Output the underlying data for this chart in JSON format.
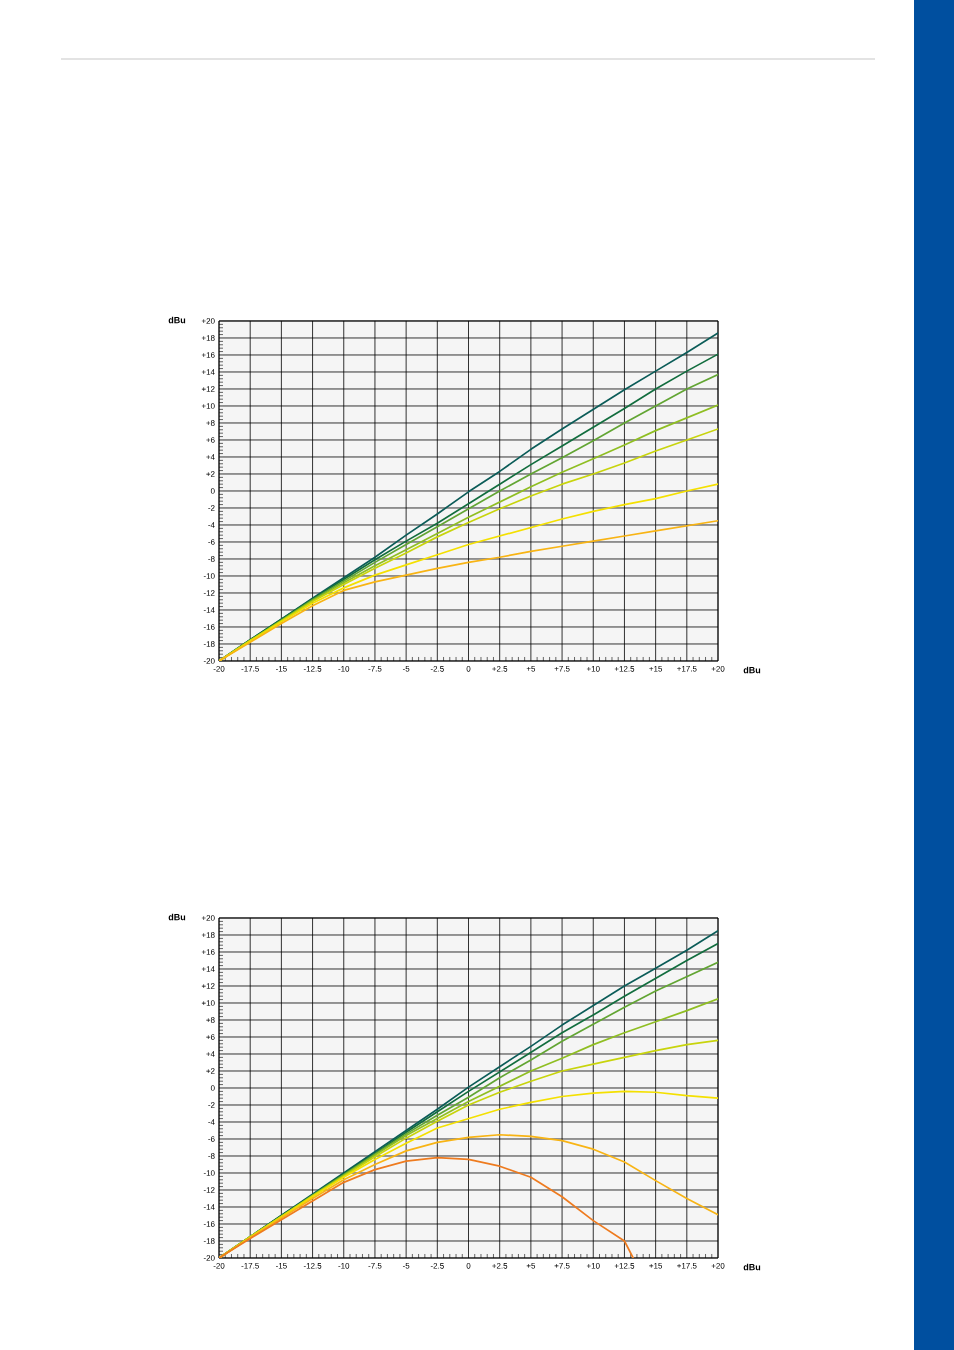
{
  "chart_data": [
    {
      "type": "line",
      "xlabel": "dBu",
      "ylabel": "dBu",
      "grid": true,
      "xlim": [
        -20,
        20
      ],
      "ylim": [
        -20,
        20
      ],
      "xticks": [
        -20,
        -17.5,
        -15,
        -12.5,
        -10,
        -7.5,
        -5,
        -2.5,
        0,
        {
          "value": 2.5,
          "label": "+2.5"
        },
        {
          "value": 5,
          "label": "+5"
        },
        {
          "value": 7.5,
          "label": "+7.5"
        },
        {
          "value": 10,
          "label": "+10"
        },
        {
          "value": 12.5,
          "label": "+12.5"
        },
        {
          "value": 15,
          "label": "+15"
        },
        {
          "value": 17.5,
          "label": "+17.5"
        },
        {
          "value": 20,
          "label": "+20"
        }
      ],
      "yticks": [
        {
          "value": 20,
          "label": "+20"
        },
        {
          "value": 18,
          "label": "+18"
        },
        {
          "value": 16,
          "label": "+16"
        },
        {
          "value": 14,
          "label": "+14"
        },
        {
          "value": 12,
          "label": "+12"
        },
        {
          "value": 10,
          "label": "+10"
        },
        {
          "value": 8,
          "label": "+8"
        },
        {
          "value": 6,
          "label": "+6"
        },
        {
          "value": 4,
          "label": "+4"
        },
        {
          "value": 2,
          "label": "+2"
        },
        0,
        -2,
        -4,
        -6,
        -8,
        -10,
        -12,
        -14,
        -16,
        -18,
        -20
      ],
      "x": [
        -20,
        -17.5,
        -15,
        -12.5,
        -10,
        -7.5,
        -5,
        -2.5,
        0,
        2.5,
        5,
        7.5,
        10,
        12.5,
        15,
        17.5,
        20
      ],
      "series": [
        {
          "color": "#0b5c58",
          "values": [
            -20,
            -17.5,
            -15.1,
            -12.6,
            -10.2,
            -7.8,
            -5.2,
            -2.7,
            -0.1,
            2.3,
            4.9,
            7.3,
            9.6,
            11.9,
            14.1,
            16.3,
            18.6
          ]
        },
        {
          "color": "#126d3e",
          "values": [
            -20,
            -17.5,
            -15.1,
            -12.7,
            -10.4,
            -8.1,
            -5.9,
            -3.8,
            -1.5,
            0.8,
            3.1,
            5.3,
            7.5,
            9.7,
            12.0,
            14.1,
            16.1
          ]
        },
        {
          "color": "#62a533",
          "values": [
            -20,
            -17.6,
            -15.2,
            -12.8,
            -10.6,
            -8.4,
            -6.3,
            -4.2,
            -2.1,
            0.0,
            2.0,
            3.9,
            5.9,
            8.0,
            10.0,
            12.0,
            13.7
          ]
        },
        {
          "color": "#8fbe22",
          "values": [
            -20,
            -17.6,
            -15.3,
            -12.9,
            -10.8,
            -8.8,
            -6.9,
            -5.0,
            -3.1,
            -1.3,
            0.5,
            2.2,
            3.8,
            5.4,
            7.1,
            8.6,
            10.1
          ]
        },
        {
          "color": "#c8d40c",
          "values": [
            -20,
            -17.6,
            -15.3,
            -13.0,
            -11.0,
            -9.1,
            -7.3,
            -5.4,
            -3.7,
            -2.1,
            -0.6,
            0.8,
            2.0,
            3.3,
            4.7,
            6.0,
            7.3
          ]
        },
        {
          "color": "#f4e000",
          "values": [
            -20,
            -17.7,
            -15.4,
            -13.2,
            -11.4,
            -9.9,
            -8.7,
            -7.5,
            -6.3,
            -5.3,
            -4.3,
            -3.3,
            -2.4,
            -1.6,
            -0.9,
            0.0,
            0.8
          ]
        },
        {
          "color": "#f8b414",
          "values": [
            -20,
            -17.8,
            -15.6,
            -13.5,
            -11.7,
            -10.7,
            -9.9,
            -9.1,
            -8.4,
            -7.8,
            -7.1,
            -6.5,
            -5.9,
            -5.3,
            -4.7,
            -4.1,
            -3.5
          ]
        }
      ]
    },
    {
      "type": "line",
      "xlabel": "dBu",
      "ylabel": "dBu",
      "grid": true,
      "xlim": [
        -20,
        20
      ],
      "ylim": [
        -20,
        20
      ],
      "xticks": [
        -20,
        -17.5,
        -15,
        -12.5,
        -10,
        -7.5,
        -5,
        -2.5,
        0,
        {
          "value": 2.5,
          "label": "+2.5"
        },
        {
          "value": 5,
          "label": "+5"
        },
        {
          "value": 7.5,
          "label": "+7.5"
        },
        {
          "value": 10,
          "label": "+10"
        },
        {
          "value": 12.5,
          "label": "+12.5"
        },
        {
          "value": 15,
          "label": "+15"
        },
        {
          "value": 17.5,
          "label": "+17.5"
        },
        {
          "value": 20,
          "label": "+20"
        }
      ],
      "yticks": [
        {
          "value": 20,
          "label": "+20"
        },
        {
          "value": 18,
          "label": "+18"
        },
        {
          "value": 16,
          "label": "+16"
        },
        {
          "value": 14,
          "label": "+14"
        },
        {
          "value": 12,
          "label": "+12"
        },
        {
          "value": 10,
          "label": "+10"
        },
        {
          "value": 8,
          "label": "+8"
        },
        {
          "value": 6,
          "label": "+6"
        },
        {
          "value": 4,
          "label": "+4"
        },
        {
          "value": 2,
          "label": "+2"
        },
        0,
        -2,
        -4,
        -6,
        -8,
        -10,
        -12,
        -14,
        -16,
        -18,
        -20
      ],
      "x": [
        -20,
        -17.5,
        -15,
        -12.5,
        -10,
        -7.5,
        -5,
        -2.5,
        0,
        2.5,
        5,
        7.5,
        10,
        12.5,
        15,
        17.5,
        20
      ],
      "series": [
        {
          "color": "#0b5c58",
          "values": [
            -20,
            -17.5,
            -15,
            -12.5,
            -10,
            -7.5,
            -5,
            -2.5,
            0.1,
            2.5,
            4.9,
            7.4,
            9.7,
            12.0,
            14.1,
            16.2,
            18.5
          ]
        },
        {
          "color": "#126d3e",
          "values": [
            -20,
            -17.5,
            -15,
            -12.6,
            -10.1,
            -7.7,
            -5.2,
            -2.8,
            -0.4,
            1.9,
            4.2,
            6.5,
            8.6,
            10.8,
            12.9,
            15.0,
            17.0
          ]
        },
        {
          "color": "#62a533",
          "values": [
            -20,
            -17.5,
            -15.1,
            -12.6,
            -10.2,
            -7.8,
            -5.4,
            -3.2,
            -1.1,
            1.2,
            3.3,
            5.5,
            7.5,
            9.5,
            11.4,
            13.1,
            14.8
          ]
        },
        {
          "color": "#8fbe22",
          "values": [
            -20,
            -17.5,
            -15.1,
            -12.7,
            -10.3,
            -7.9,
            -5.6,
            -3.6,
            -1.6,
            0.2,
            2.0,
            3.5,
            5.1,
            6.5,
            7.8,
            9.1,
            10.5
          ]
        },
        {
          "color": "#c8d40c",
          "values": [
            -20,
            -17.5,
            -15.1,
            -12.7,
            -10.4,
            -8.1,
            -5.9,
            -3.9,
            -2.0,
            -0.5,
            0.8,
            2.0,
            2.8,
            3.6,
            4.4,
            5.1,
            5.6
          ]
        },
        {
          "color": "#f4e000",
          "values": [
            -20,
            -17.6,
            -15.2,
            -12.8,
            -10.5,
            -8.4,
            -6.5,
            -4.7,
            -3.6,
            -2.5,
            -1.7,
            -1.0,
            -0.6,
            -0.4,
            -0.5,
            -0.9,
            -1.2
          ]
        },
        {
          "color": "#f8b414",
          "values": [
            -20,
            -17.6,
            -15.3,
            -13.0,
            -10.8,
            -9.0,
            -7.4,
            -6.4,
            -5.8,
            -5.5,
            -5.7,
            -6.2,
            -7.2,
            -8.7,
            -10.9,
            -13.0,
            -14.9
          ]
        },
        {
          "color": "#ee7b1f",
          "x": [
            -20,
            -17.5,
            -15,
            -12.5,
            -10,
            -7.5,
            -5,
            -2.5,
            0,
            2.5,
            5,
            7.5,
            10,
            12.5,
            13.2
          ],
          "values": [
            -20,
            -17.7,
            -15.5,
            -13.3,
            -11.1,
            -9.6,
            -8.6,
            -8.2,
            -8.4,
            -9.2,
            -10.5,
            -12.8,
            -15.6,
            -18.0,
            -20
          ]
        }
      ]
    }
  ]
}
